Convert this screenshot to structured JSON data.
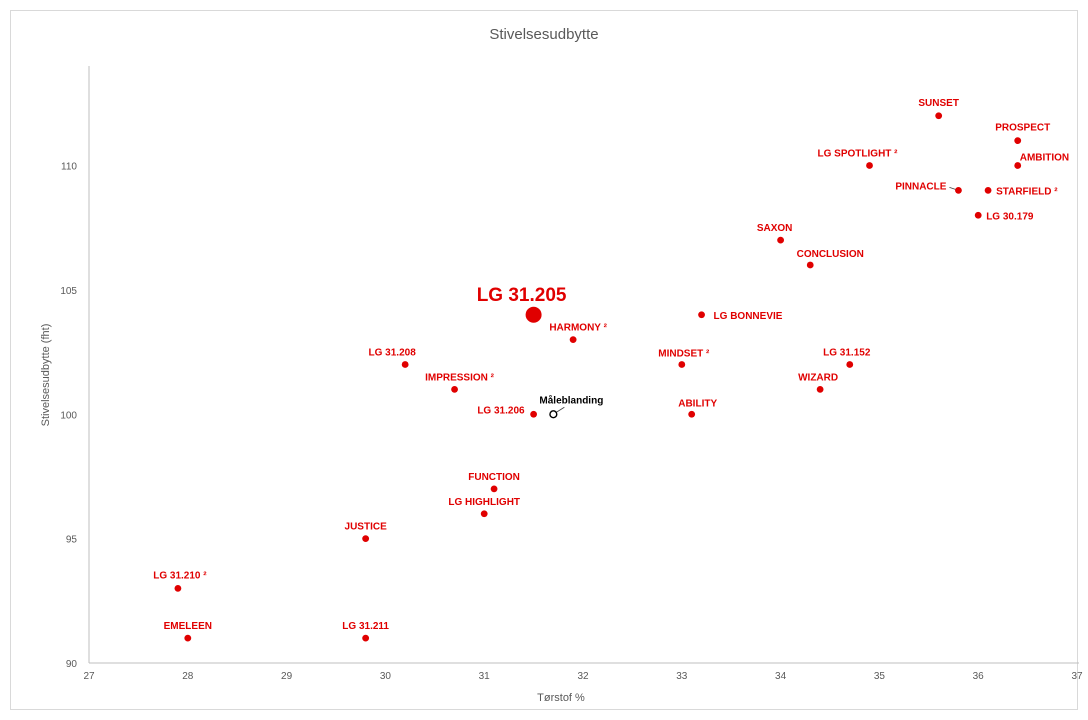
{
  "chart_data": {
    "type": "scatter",
    "title": "Stivelsesudbytte",
    "xlabel": "Tørstof %",
    "ylabel": "Stivelsesudbytte (fht)",
    "xlim": [
      27,
      37
    ],
    "ylim": [
      90,
      114
    ],
    "xticks": [
      "27",
      "28",
      "29",
      "30",
      "31",
      "32",
      "33",
      "34",
      "35",
      "36",
      "37"
    ],
    "yticks": [
      "90",
      "95",
      "100",
      "105",
      "110"
    ],
    "grid": false,
    "colors": {
      "point": "#e00000",
      "reference": "#000000"
    },
    "points": [
      {
        "label": "SUNSET",
        "x": 35.6,
        "y": 112
      },
      {
        "label": "PROSPECT",
        "x": 36.4,
        "y": 111
      },
      {
        "label": "AMBITION",
        "x": 36.4,
        "y": 110
      },
      {
        "label": "LG SPOTLIGHT ²",
        "x": 34.9,
        "y": 110
      },
      {
        "label": "PINNACLE",
        "x": 35.8,
        "y": 109
      },
      {
        "label": "STARFIELD ²",
        "x": 36.1,
        "y": 109
      },
      {
        "label": "LG 30.179",
        "x": 36.0,
        "y": 108
      },
      {
        "label": "SAXON",
        "x": 34.0,
        "y": 107
      },
      {
        "label": "CONCLUSION",
        "x": 34.3,
        "y": 106
      },
      {
        "label": "LG 31.205",
        "x": 31.5,
        "y": 104,
        "highlight": true
      },
      {
        "label": "LG BONNEVIE",
        "x": 33.2,
        "y": 104
      },
      {
        "label": "HARMONY ²",
        "x": 31.9,
        "y": 103
      },
      {
        "label": "LG 31.208",
        "x": 30.2,
        "y": 102
      },
      {
        "label": "MINDSET ²",
        "x": 33.0,
        "y": 102
      },
      {
        "label": "LG 31.152",
        "x": 34.7,
        "y": 102
      },
      {
        "label": "IMPRESSION ²",
        "x": 30.7,
        "y": 101
      },
      {
        "label": "WIZARD",
        "x": 34.4,
        "y": 101
      },
      {
        "label": "LG 31.206",
        "x": 31.5,
        "y": 100
      },
      {
        "label": "Måleblanding",
        "x": 31.7,
        "y": 100,
        "reference": true
      },
      {
        "label": "ABILITY",
        "x": 33.1,
        "y": 100
      },
      {
        "label": "FUNCTION",
        "x": 31.1,
        "y": 97
      },
      {
        "label": "LG HIGHLIGHT",
        "x": 31.0,
        "y": 96
      },
      {
        "label": "JUSTICE",
        "x": 29.8,
        "y": 95
      },
      {
        "label": "LG 31.210 ²",
        "x": 27.9,
        "y": 93
      },
      {
        "label": "EMELEEN",
        "x": 28.0,
        "y": 91
      },
      {
        "label": "LG 31.211",
        "x": 29.8,
        "y": 91
      }
    ]
  }
}
